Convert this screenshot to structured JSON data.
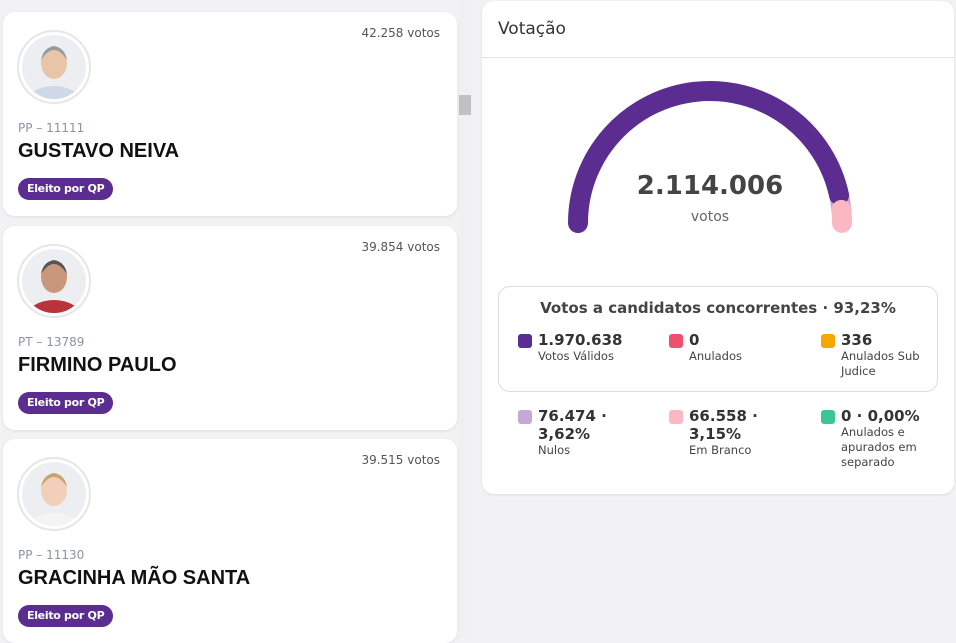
{
  "candidates": [
    {
      "votes": "42.258 votos",
      "party": "PP – 11111",
      "name": "GUSTAVO NEIVA",
      "badge": "Eleito por QP"
    },
    {
      "votes": "39.854 votos",
      "party": "PT – 13789",
      "name": "FIRMINO PAULO",
      "badge": "Eleito por QP"
    },
    {
      "votes": "39.515 votos",
      "party": "PP – 11130",
      "name": "GRACINHA MÃO SANTA",
      "badge": "Eleito por QP"
    }
  ],
  "panel": {
    "title": "Votação",
    "total": "2.114.006",
    "total_unit": "votos",
    "box_title": "Votos a candidatos concorrentes · 93,23%",
    "items": [
      {
        "value": "1.970.638",
        "label": "Votos Válidos"
      },
      {
        "value": "0",
        "label": "Anulados"
      },
      {
        "value": "336",
        "label": "Anulados Sub Judice"
      }
    ],
    "items2": [
      {
        "value": "76.474 · 3,62%",
        "label": "Nulos"
      },
      {
        "value": "66.558 · 3,15%",
        "label": "Em Branco"
      },
      {
        "value": "0 · 0,00%",
        "label": "Anulados e apurados em separado"
      }
    ]
  }
}
